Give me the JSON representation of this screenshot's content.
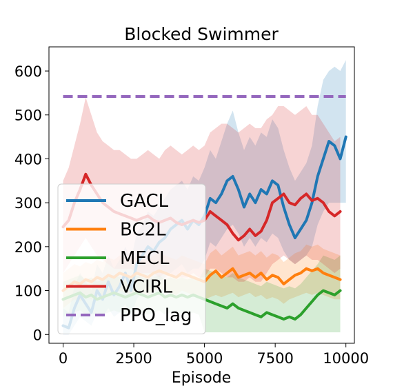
{
  "chart_data": {
    "type": "line",
    "title": "Blocked Swimmer",
    "xlabel": "Episode",
    "ylabel": "",
    "xlim": [
      -500,
      10300
    ],
    "ylim": [
      -20,
      655
    ],
    "xticks": [
      0,
      2500,
      5000,
      7500,
      10000
    ],
    "yticks": [
      0,
      100,
      200,
      300,
      400,
      500,
      600
    ],
    "grid": false,
    "legend_position": "lower-left",
    "series": [
      {
        "name": "GACL",
        "color": "#1f77b4",
        "style": "solid",
        "x": [
          0,
          200,
          400,
          600,
          800,
          1000,
          1200,
          1400,
          1600,
          1800,
          2000,
          2200,
          2400,
          2600,
          2800,
          3000,
          3200,
          3400,
          3600,
          3800,
          4000,
          4200,
          4400,
          4600,
          4800,
          5000,
          5200,
          5400,
          5600,
          5800,
          6000,
          6200,
          6400,
          6600,
          6800,
          7000,
          7200,
          7400,
          7600,
          7800,
          8000,
          8200,
          8400,
          8600,
          8800,
          9000,
          9200,
          9400,
          9600,
          9800,
          10000
        ],
        "y": [
          20,
          15,
          60,
          90,
          70,
          50,
          100,
          80,
          120,
          90,
          110,
          140,
          100,
          160,
          180,
          200,
          190,
          210,
          220,
          240,
          250,
          260,
          240,
          260,
          250,
          270,
          310,
          300,
          320,
          350,
          360,
          330,
          290,
          320,
          300,
          330,
          320,
          350,
          340,
          290,
          250,
          220,
          240,
          260,
          300,
          360,
          400,
          440,
          430,
          400,
          450
        ],
        "band_lower": [
          0,
          0,
          20,
          40,
          30,
          20,
          50,
          40,
          60,
          40,
          50,
          70,
          40,
          80,
          100,
          110,
          100,
          120,
          130,
          140,
          150,
          160,
          140,
          150,
          150,
          170,
          210,
          200,
          220,
          240,
          250,
          230,
          200,
          220,
          200,
          220,
          210,
          230,
          220,
          190,
          170,
          160,
          170,
          180,
          200,
          250,
          280,
          300,
          300,
          300,
          300
        ],
        "band_upper": [
          60,
          50,
          110,
          140,
          120,
          100,
          160,
          140,
          180,
          150,
          170,
          200,
          170,
          230,
          250,
          280,
          270,
          290,
          310,
          330,
          340,
          350,
          330,
          360,
          350,
          380,
          420,
          400,
          440,
          480,
          510,
          460,
          420,
          450,
          430,
          460,
          450,
          490,
          470,
          420,
          380,
          350,
          370,
          390,
          430,
          520,
          580,
          600,
          610,
          600,
          625
        ]
      },
      {
        "name": "BC2L",
        "color": "#ff7f0e",
        "style": "solid",
        "x": [
          0,
          200,
          400,
          600,
          800,
          1000,
          1200,
          1400,
          1600,
          1800,
          2000,
          2200,
          2400,
          2600,
          2800,
          3000,
          3200,
          3400,
          3600,
          3800,
          4000,
          4200,
          4400,
          4600,
          4800,
          5000,
          5200,
          5400,
          5600,
          5800,
          6000,
          6200,
          6400,
          6600,
          6800,
          7000,
          7200,
          7400,
          7600,
          7800,
          8000,
          8200,
          8400,
          8600,
          8800,
          9000,
          9200,
          9400,
          9600,
          9800
        ],
        "y": [
          100,
          110,
          120,
          115,
          125,
          120,
          130,
          125,
          135,
          130,
          140,
          135,
          130,
          140,
          135,
          130,
          140,
          145,
          140,
          135,
          130,
          140,
          135,
          130,
          125,
          120,
          135,
          145,
          130,
          140,
          150,
          130,
          135,
          140,
          130,
          140,
          125,
          135,
          130,
          115,
          125,
          135,
          140,
          150,
          145,
          150,
          140,
          135,
          130,
          125
        ],
        "band_lower": [
          60,
          70,
          80,
          75,
          85,
          80,
          90,
          85,
          95,
          90,
          100,
          95,
          90,
          100,
          95,
          90,
          100,
          105,
          100,
          95,
          90,
          100,
          95,
          90,
          85,
          80,
          85,
          90,
          85,
          90,
          95,
          85,
          90,
          95,
          85,
          90,
          80,
          85,
          80,
          70,
          80,
          85,
          90,
          95,
          90,
          95,
          90,
          85,
          80,
          80
        ],
        "band_upper": [
          140,
          150,
          160,
          155,
          165,
          160,
          170,
          165,
          175,
          170,
          180,
          175,
          170,
          180,
          175,
          170,
          180,
          185,
          180,
          175,
          170,
          180,
          175,
          170,
          165,
          160,
          185,
          195,
          180,
          190,
          200,
          180,
          185,
          190,
          180,
          190,
          175,
          185,
          180,
          165,
          175,
          185,
          190,
          205,
          200,
          205,
          195,
          190,
          185,
          180
        ]
      },
      {
        "name": "MECL",
        "color": "#2ca02c",
        "style": "solid",
        "x": [
          0,
          200,
          400,
          600,
          800,
          1000,
          1200,
          1400,
          1600,
          1800,
          2000,
          2200,
          2400,
          2600,
          2800,
          3000,
          3200,
          3400,
          3600,
          3800,
          4000,
          4200,
          4400,
          4600,
          4800,
          5000,
          5200,
          5400,
          5600,
          5800,
          6000,
          6200,
          6400,
          6600,
          6800,
          7000,
          7200,
          7400,
          7600,
          7800,
          8000,
          8200,
          8400,
          8600,
          8800,
          9000,
          9200,
          9400,
          9600,
          9800
        ],
        "y": [
          80,
          85,
          90,
          95,
          85,
          90,
          80,
          85,
          90,
          95,
          90,
          85,
          90,
          95,
          90,
          85,
          90,
          95,
          85,
          90,
          85,
          90,
          85,
          90,
          85,
          80,
          75,
          70,
          65,
          60,
          70,
          60,
          55,
          50,
          45,
          40,
          50,
          45,
          40,
          35,
          40,
          35,
          45,
          60,
          75,
          90,
          100,
          95,
          90,
          100
        ],
        "band_lower": [
          40,
          45,
          50,
          55,
          45,
          50,
          40,
          45,
          50,
          55,
          50,
          45,
          50,
          55,
          50,
          45,
          50,
          55,
          45,
          50,
          45,
          50,
          45,
          50,
          45,
          5,
          5,
          5,
          5,
          5,
          5,
          5,
          5,
          5,
          5,
          5,
          5,
          5,
          5,
          5,
          5,
          5,
          5,
          5,
          5,
          5,
          5,
          5,
          5,
          5
        ],
        "band_upper": [
          120,
          125,
          130,
          135,
          125,
          130,
          120,
          125,
          130,
          135,
          130,
          125,
          130,
          135,
          130,
          125,
          130,
          135,
          125,
          130,
          125,
          130,
          125,
          130,
          125,
          150,
          145,
          140,
          135,
          130,
          140,
          130,
          125,
          120,
          115,
          110,
          120,
          115,
          110,
          105,
          110,
          105,
          115,
          130,
          145,
          160,
          180,
          175,
          170,
          180
        ]
      },
      {
        "name": "VCIRL",
        "color": "#d62728",
        "style": "solid",
        "x": [
          0,
          200,
          400,
          600,
          800,
          1000,
          1200,
          1400,
          1600,
          1800,
          2000,
          2200,
          2400,
          2600,
          2800,
          3000,
          3200,
          3400,
          3600,
          3800,
          4000,
          4200,
          4400,
          4600,
          4800,
          5000,
          5200,
          5400,
          5600,
          5800,
          6000,
          6200,
          6400,
          6600,
          6800,
          7000,
          7200,
          7400,
          7600,
          7800,
          8000,
          8200,
          8400,
          8600,
          8800,
          9000,
          9200,
          9400,
          9600,
          9800
        ],
        "y": [
          245,
          260,
          300,
          330,
          365,
          340,
          320,
          300,
          290,
          280,
          275,
          270,
          265,
          260,
          265,
          270,
          260,
          255,
          260,
          265,
          255,
          250,
          255,
          260,
          255,
          260,
          280,
          270,
          260,
          250,
          230,
          215,
          225,
          240,
          225,
          235,
          260,
          300,
          310,
          320,
          300,
          295,
          310,
          320,
          305,
          310,
          300,
          280,
          270,
          280
        ],
        "band_lower": [
          140,
          160,
          180,
          200,
          220,
          200,
          180,
          170,
          160,
          150,
          150,
          150,
          150,
          140,
          140,
          140,
          140,
          130,
          140,
          140,
          130,
          130,
          130,
          140,
          130,
          130,
          150,
          150,
          140,
          130,
          130,
          120,
          120,
          130,
          120,
          120,
          140,
          160,
          170,
          180,
          170,
          160,
          170,
          180,
          170,
          170,
          160,
          150,
          140,
          150
        ],
        "band_upper": [
          350,
          380,
          430,
          480,
          540,
          500,
          460,
          440,
          430,
          420,
          420,
          410,
          400,
          400,
          410,
          420,
          410,
          400,
          420,
          430,
          420,
          410,
          420,
          430,
          420,
          430,
          460,
          470,
          480,
          480,
          470,
          460,
          470,
          480,
          470,
          470,
          490,
          500,
          520,
          520,
          510,
          500,
          510,
          520,
          500,
          500,
          480,
          460,
          440,
          450
        ]
      },
      {
        "name": "PPO_lag",
        "color": "#9467bd",
        "style": "dashed",
        "x": [
          0,
          10000
        ],
        "y": [
          542,
          542
        ]
      }
    ]
  }
}
